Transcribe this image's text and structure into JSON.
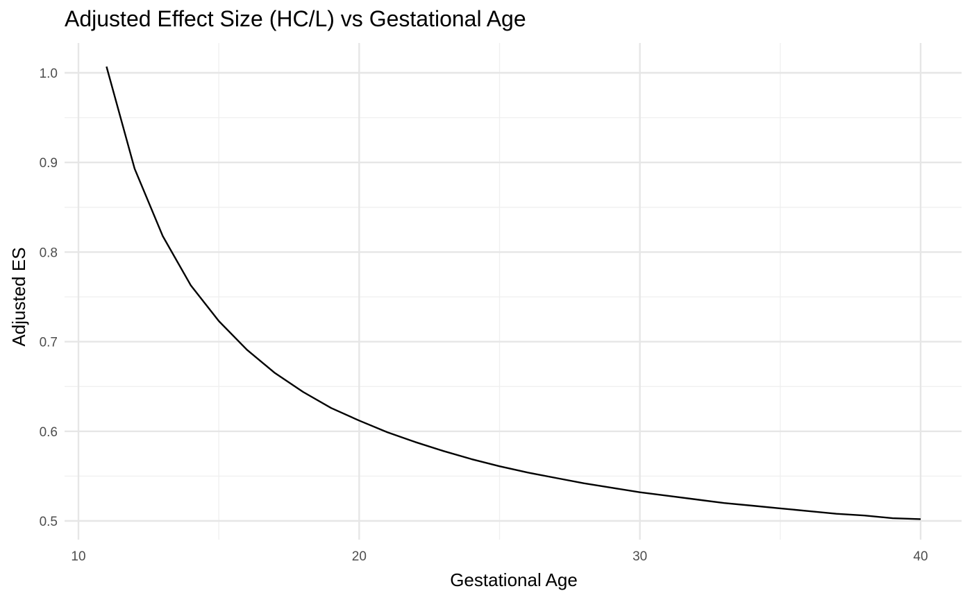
{
  "chart_data": {
    "type": "line",
    "title": "Adjusted Effect Size (HC/L) vs Gestational Age",
    "xlabel": "Gestational Age",
    "ylabel": "Adjusted ES",
    "xlim": [
      10,
      40
    ],
    "ylim": [
      0.5,
      1.0
    ],
    "x_ticks": [
      10,
      20,
      30,
      40
    ],
    "x_tick_labels": [
      "10",
      "20",
      "30",
      "40"
    ],
    "y_ticks": [
      0.5,
      0.6,
      0.7,
      0.8,
      0.9,
      1.0
    ],
    "y_tick_labels": [
      "0.5",
      "0.6",
      "0.7",
      "0.8",
      "0.9",
      "1.0"
    ],
    "grid": true,
    "legend": "none",
    "line_color": "#000000",
    "series": [
      {
        "x": [
          11,
          12,
          13,
          14,
          15,
          16,
          17,
          18,
          19,
          20,
          21,
          22,
          23,
          24,
          25,
          26,
          27,
          28,
          29,
          30,
          31,
          32,
          33,
          34,
          35,
          36,
          37,
          38,
          39,
          40
        ],
        "values": [
          1.007,
          0.893,
          0.818,
          0.763,
          0.723,
          0.691,
          0.665,
          0.644,
          0.626,
          0.612,
          0.599,
          0.588,
          0.578,
          0.569,
          0.561,
          0.554,
          0.548,
          0.542,
          0.537,
          0.532,
          0.528,
          0.524,
          0.52,
          0.517,
          0.514,
          0.511,
          0.508,
          0.506,
          0.503,
          0.502
        ]
      }
    ]
  }
}
